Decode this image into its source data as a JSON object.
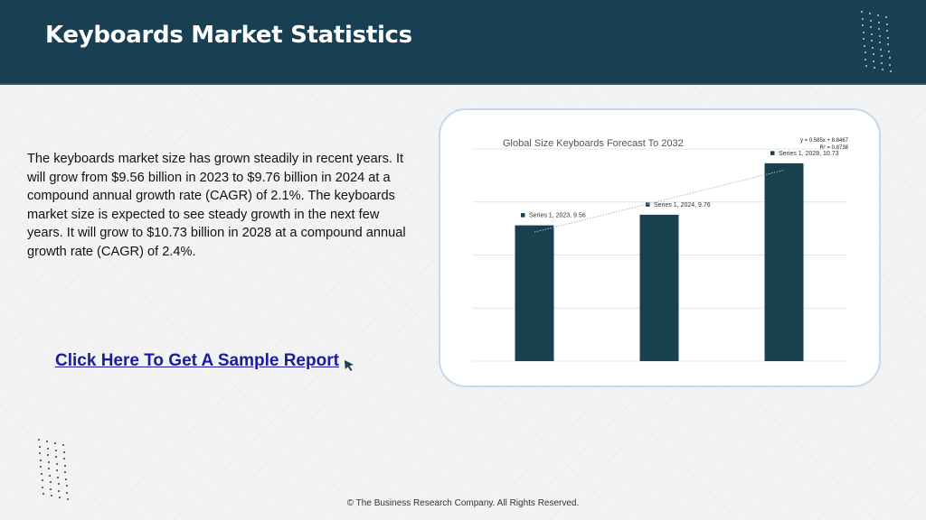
{
  "header": {
    "title": "Keyboards Market Statistics"
  },
  "body": {
    "paragraph": "The keyboards market size has grown steadily in recent years. It will grow from $9.56 billion in 2023 to $9.76 billion in 2024 at a compound annual growth rate (CAGR) of 2.1%. The keyboards market size is expected to see steady growth in the next few years. It will grow to $10.73 billion in 2028 at a compound annual growth rate (CAGR) of 2.4%."
  },
  "cta": {
    "label": "Click Here To Get A Sample Report",
    "cursor_icon": "mouse-pointer-icon"
  },
  "footer": {
    "copyright": "© The Business Research Company. All Rights Reserved."
  },
  "colors": {
    "header_bg": "#183f52",
    "bar": "#17414f",
    "link": "#1a1aa6"
  },
  "chart_data": {
    "type": "bar",
    "title": "Global Size Keyboards Forecast To 2032",
    "categories": [
      "2023",
      "2024",
      "2028"
    ],
    "series": [
      {
        "name": "Series 1",
        "values": [
          9.56,
          9.76,
          10.73
        ],
        "data_labels": [
          "Series 1, 2023, 9.56",
          "Series 1, 2024, 9.76",
          "Series 1, 2028, 10.73"
        ]
      }
    ],
    "trendline": {
      "type": "linear",
      "equation": "y = 0.585x + 8.8467",
      "r_squared": "R² = 0.8738"
    },
    "xlabel": "",
    "ylabel": "",
    "ylim": [
      7.0,
      11.0
    ],
    "grid": true,
    "legend": "none"
  }
}
